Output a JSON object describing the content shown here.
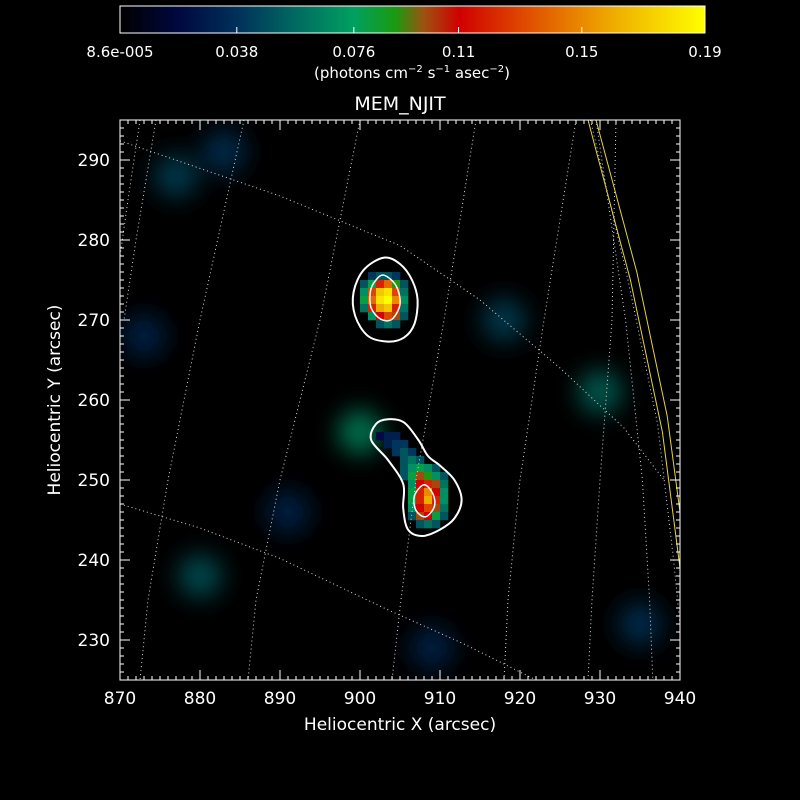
{
  "chart_data": {
    "type": "heatmap",
    "title": "MEM_NJIT",
    "xlabel": "Heliocentric X (arcsec)",
    "ylabel": "Heliocentric Y (arcsec)",
    "xlim": [
      870,
      940
    ],
    "ylim": [
      225,
      295
    ],
    "x_ticks": [
      870,
      880,
      890,
      900,
      910,
      920,
      930,
      940
    ],
    "y_ticks": [
      230,
      240,
      250,
      260,
      270,
      280,
      290
    ],
    "colorbar": {
      "min": 8.6e-05,
      "max": 0.19,
      "tick_values": [
        8.6e-05,
        0.038,
        0.076,
        0.11,
        0.15,
        0.19
      ],
      "tick_labels": [
        "8.6e-005",
        "0.038",
        "0.076",
        "0.11",
        "0.15",
        "0.19"
      ],
      "unit_text": "(photons cm",
      "unit_sup1": "−2",
      "unit_mid": " s",
      "unit_sup2": "−1",
      "unit_mid2": " asec",
      "unit_sup3": "−2",
      "unit_end": ")",
      "colormap_stops": [
        [
          0.0,
          "#000000"
        ],
        [
          0.1,
          "#000840"
        ],
        [
          0.2,
          "#00305a"
        ],
        [
          0.3,
          "#006a60"
        ],
        [
          0.4,
          "#00a060"
        ],
        [
          0.47,
          "#1a9a10"
        ],
        [
          0.52,
          "#a05010"
        ],
        [
          0.58,
          "#d00000"
        ],
        [
          0.7,
          "#e05000"
        ],
        [
          0.85,
          "#f0b000"
        ],
        [
          1.0,
          "#ffff00"
        ]
      ]
    },
    "pixel_size_arcsec": 1.0,
    "sources": [
      {
        "name": "upper",
        "pixels": [
          {
            "x": 901.5,
            "y": 275.5,
            "v": 0.04
          },
          {
            "x": 902.5,
            "y": 275.5,
            "v": 0.05
          },
          {
            "x": 903.5,
            "y": 275.5,
            "v": 0.05
          },
          {
            "x": 904.5,
            "y": 275.5,
            "v": 0.04
          },
          {
            "x": 900.5,
            "y": 274.5,
            "v": 0.05
          },
          {
            "x": 901.5,
            "y": 274.5,
            "v": 0.08
          },
          {
            "x": 902.5,
            "y": 274.5,
            "v": 0.12
          },
          {
            "x": 903.5,
            "y": 274.5,
            "v": 0.14
          },
          {
            "x": 904.5,
            "y": 274.5,
            "v": 0.09
          },
          {
            "x": 905.5,
            "y": 274.5,
            "v": 0.05
          },
          {
            "x": 900.5,
            "y": 273.5,
            "v": 0.07
          },
          {
            "x": 901.5,
            "y": 273.5,
            "v": 0.13
          },
          {
            "x": 902.5,
            "y": 273.5,
            "v": 0.17
          },
          {
            "x": 903.5,
            "y": 273.5,
            "v": 0.18
          },
          {
            "x": 904.5,
            "y": 273.5,
            "v": 0.13
          },
          {
            "x": 905.5,
            "y": 273.5,
            "v": 0.06
          },
          {
            "x": 900.5,
            "y": 272.5,
            "v": 0.08
          },
          {
            "x": 901.5,
            "y": 272.5,
            "v": 0.14
          },
          {
            "x": 902.5,
            "y": 272.5,
            "v": 0.18
          },
          {
            "x": 903.5,
            "y": 272.5,
            "v": 0.19
          },
          {
            "x": 904.5,
            "y": 272.5,
            "v": 0.15
          },
          {
            "x": 905.5,
            "y": 272.5,
            "v": 0.07
          },
          {
            "x": 900.5,
            "y": 271.5,
            "v": 0.06
          },
          {
            "x": 901.5,
            "y": 271.5,
            "v": 0.12
          },
          {
            "x": 902.5,
            "y": 271.5,
            "v": 0.16
          },
          {
            "x": 903.5,
            "y": 271.5,
            "v": 0.17
          },
          {
            "x": 904.5,
            "y": 271.5,
            "v": 0.12
          },
          {
            "x": 905.5,
            "y": 271.5,
            "v": 0.06
          },
          {
            "x": 901.5,
            "y": 270.5,
            "v": 0.07
          },
          {
            "x": 902.5,
            "y": 270.5,
            "v": 0.11
          },
          {
            "x": 903.5,
            "y": 270.5,
            "v": 0.13
          },
          {
            "x": 904.5,
            "y": 270.5,
            "v": 0.1
          },
          {
            "x": 905.5,
            "y": 270.5,
            "v": 0.05
          },
          {
            "x": 902.5,
            "y": 269.5,
            "v": 0.05
          },
          {
            "x": 903.5,
            "y": 269.5,
            "v": 0.06
          },
          {
            "x": 904.5,
            "y": 269.5,
            "v": 0.05
          }
        ]
      },
      {
        "name": "lower",
        "pixels": [
          {
            "x": 902.5,
            "y": 255.5,
            "v": 0.02
          },
          {
            "x": 903.5,
            "y": 255.5,
            "v": 0.03
          },
          {
            "x": 904.5,
            "y": 255.5,
            "v": 0.03
          },
          {
            "x": 903.5,
            "y": 254.5,
            "v": 0.03
          },
          {
            "x": 904.5,
            "y": 254.5,
            "v": 0.04
          },
          {
            "x": 905.5,
            "y": 254.5,
            "v": 0.04
          },
          {
            "x": 904.5,
            "y": 253.5,
            "v": 0.04
          },
          {
            "x": 905.5,
            "y": 253.5,
            "v": 0.05
          },
          {
            "x": 906.5,
            "y": 253.5,
            "v": 0.04
          },
          {
            "x": 905.5,
            "y": 252.5,
            "v": 0.05
          },
          {
            "x": 906.5,
            "y": 252.5,
            "v": 0.06
          },
          {
            "x": 907.5,
            "y": 252.5,
            "v": 0.05
          },
          {
            "x": 905.5,
            "y": 251.5,
            "v": 0.05
          },
          {
            "x": 906.5,
            "y": 251.5,
            "v": 0.07
          },
          {
            "x": 907.5,
            "y": 251.5,
            "v": 0.08
          },
          {
            "x": 908.5,
            "y": 251.5,
            "v": 0.07
          },
          {
            "x": 909.5,
            "y": 251.5,
            "v": 0.05
          },
          {
            "x": 905.5,
            "y": 250.5,
            "v": 0.05
          },
          {
            "x": 906.5,
            "y": 250.5,
            "v": 0.08
          },
          {
            "x": 907.5,
            "y": 250.5,
            "v": 0.1
          },
          {
            "x": 908.5,
            "y": 250.5,
            "v": 0.09
          },
          {
            "x": 909.5,
            "y": 250.5,
            "v": 0.07
          },
          {
            "x": 910.5,
            "y": 250.5,
            "v": 0.05
          },
          {
            "x": 906.5,
            "y": 249.5,
            "v": 0.07
          },
          {
            "x": 907.5,
            "y": 249.5,
            "v": 0.11
          },
          {
            "x": 908.5,
            "y": 249.5,
            "v": 0.12
          },
          {
            "x": 909.5,
            "y": 249.5,
            "v": 0.1
          },
          {
            "x": 910.5,
            "y": 249.5,
            "v": 0.06
          },
          {
            "x": 906.5,
            "y": 248.5,
            "v": 0.08
          },
          {
            "x": 907.5,
            "y": 248.5,
            "v": 0.12
          },
          {
            "x": 908.5,
            "y": 248.5,
            "v": 0.15
          },
          {
            "x": 909.5,
            "y": 248.5,
            "v": 0.11
          },
          {
            "x": 910.5,
            "y": 248.5,
            "v": 0.07
          },
          {
            "x": 906.5,
            "y": 247.5,
            "v": 0.08
          },
          {
            "x": 907.5,
            "y": 247.5,
            "v": 0.12
          },
          {
            "x": 908.5,
            "y": 247.5,
            "v": 0.16
          },
          {
            "x": 909.5,
            "y": 247.5,
            "v": 0.12
          },
          {
            "x": 910.5,
            "y": 247.5,
            "v": 0.07
          },
          {
            "x": 906.5,
            "y": 246.5,
            "v": 0.07
          },
          {
            "x": 907.5,
            "y": 246.5,
            "v": 0.11
          },
          {
            "x": 908.5,
            "y": 246.5,
            "v": 0.13
          },
          {
            "x": 909.5,
            "y": 246.5,
            "v": 0.1
          },
          {
            "x": 910.5,
            "y": 246.5,
            "v": 0.06
          },
          {
            "x": 906.5,
            "y": 245.5,
            "v": 0.05
          },
          {
            "x": 907.5,
            "y": 245.5,
            "v": 0.1
          },
          {
            "x": 908.5,
            "y": 245.5,
            "v": 0.11
          },
          {
            "x": 909.5,
            "y": 245.5,
            "v": 0.08
          },
          {
            "x": 910.5,
            "y": 245.5,
            "v": 0.05
          },
          {
            "x": 907.5,
            "y": 244.5,
            "v": 0.05
          },
          {
            "x": 908.5,
            "y": 244.5,
            "v": 0.06
          },
          {
            "x": 909.5,
            "y": 244.5,
            "v": 0.05
          }
        ]
      }
    ],
    "faint_background_blobs": [
      {
        "x": 877,
        "y": 288,
        "v": 0.006
      },
      {
        "x": 883,
        "y": 291,
        "v": 0.005
      },
      {
        "x": 873,
        "y": 268,
        "v": 0.004
      },
      {
        "x": 880,
        "y": 238,
        "v": 0.007
      },
      {
        "x": 891,
        "y": 246,
        "v": 0.004
      },
      {
        "x": 900,
        "y": 256,
        "v": 0.01
      },
      {
        "x": 918,
        "y": 270,
        "v": 0.006
      },
      {
        "x": 930,
        "y": 261,
        "v": 0.008
      },
      {
        "x": 935,
        "y": 232,
        "v": 0.005
      },
      {
        "x": 909,
        "y": 229,
        "v": 0.004
      }
    ],
    "contours": [
      {
        "level": "outer",
        "color": "#ffffff",
        "points": [
          [
            903.0,
            277.8
          ],
          [
            905.0,
            277.0
          ],
          [
            906.5,
            275.0
          ],
          [
            907.2,
            272.5
          ],
          [
            906.8,
            269.5
          ],
          [
            905.5,
            267.8
          ],
          [
            903.5,
            267.3
          ],
          [
            901.0,
            268.0
          ],
          [
            899.4,
            270.5
          ],
          [
            899.2,
            273.5
          ],
          [
            900.5,
            276.3
          ]
        ]
      },
      {
        "level": "inner",
        "color": "#ffffff",
        "points": [
          [
            903.0,
            275.6
          ],
          [
            904.5,
            274.3
          ],
          [
            905.0,
            272.0
          ],
          [
            904.0,
            270.1
          ],
          [
            902.6,
            270.1
          ],
          [
            901.4,
            271.5
          ],
          [
            901.3,
            273.6
          ],
          [
            902.0,
            275.0
          ]
        ]
      },
      {
        "level": "outer",
        "color": "#ffffff",
        "points": [
          [
            903.5,
            257.6
          ],
          [
            905.5,
            257.2
          ],
          [
            907.3,
            255.0
          ],
          [
            908.5,
            253.0
          ],
          [
            910.0,
            251.8
          ],
          [
            911.8,
            250.0
          ],
          [
            912.7,
            247.5
          ],
          [
            911.8,
            245.2
          ],
          [
            910.0,
            243.8
          ],
          [
            907.8,
            243.0
          ],
          [
            906.0,
            243.8
          ],
          [
            905.4,
            246.5
          ],
          [
            905.4,
            249.5
          ],
          [
            903.5,
            252.5
          ],
          [
            901.4,
            255.0
          ],
          [
            902.0,
            257.0
          ]
        ]
      },
      {
        "level": "inner",
        "color": "#ffffff",
        "points": [
          [
            908.0,
            249.4
          ],
          [
            909.1,
            248.3
          ],
          [
            909.3,
            246.7
          ],
          [
            908.2,
            245.4
          ],
          [
            907.0,
            246.2
          ],
          [
            906.8,
            248.0
          ]
        ]
      }
    ],
    "grid_lines": {
      "color": "#d8d8d8",
      "lines": [
        [
          [
            870,
            292.4
          ],
          [
            890,
            285.5
          ],
          [
            905,
            279.3
          ],
          [
            915,
            272.5
          ],
          [
            925,
            264.0
          ],
          [
            933,
            256.5
          ],
          [
            938,
            250.0
          ]
        ],
        [
          [
            870,
            247.0
          ],
          [
            880,
            244.0
          ],
          [
            890,
            240.2
          ],
          [
            903,
            234.0
          ],
          [
            913,
            229.5
          ],
          [
            920,
            226.0
          ],
          [
            925,
            223.5
          ]
        ],
        [
          [
            874.5,
            295
          ],
          [
            872,
            280
          ],
          [
            870.5,
            270
          ]
        ],
        [
          [
            872.5,
            295
          ],
          [
            871,
            285
          ],
          [
            870,
            278
          ]
        ],
        [
          [
            885.5,
            295
          ],
          [
            880,
            270
          ],
          [
            876,
            250
          ],
          [
            873.5,
            235
          ],
          [
            872.5,
            225
          ]
        ],
        [
          [
            900,
            295
          ],
          [
            895,
            270
          ],
          [
            890,
            250
          ],
          [
            887,
            235
          ],
          [
            886,
            225
          ]
        ],
        [
          [
            914.5,
            295
          ],
          [
            910.5,
            270
          ],
          [
            907,
            250
          ],
          [
            905,
            234
          ],
          [
            904,
            225
          ]
        ],
        [
          [
            927,
            295
          ],
          [
            923,
            270
          ],
          [
            920,
            250
          ],
          [
            918.5,
            235
          ],
          [
            918,
            225
          ]
        ],
        [
          [
            932,
            295
          ],
          [
            931.5,
            270
          ],
          [
            930,
            250
          ],
          [
            929,
            235
          ],
          [
            928.5,
            225
          ]
        ],
        [
          [
            929.5,
            295
          ],
          [
            933.2,
            270
          ],
          [
            935.3,
            250
          ],
          [
            936.2,
            235
          ],
          [
            936.6,
            225
          ]
        ],
        [
          [
            928.8,
            295
          ],
          [
            933.5,
            275
          ],
          [
            937.2,
            257
          ],
          [
            939.2,
            240
          ],
          [
            940,
            232
          ]
        ]
      ]
    },
    "limb_lines": {
      "color": "#e0d05a",
      "lines": [
        [
          [
            928.5,
            295
          ],
          [
            933.8,
            275
          ],
          [
            937.8,
            256
          ],
          [
            940,
            239
          ]
        ],
        [
          [
            929.5,
            295
          ],
          [
            934.6,
            276
          ],
          [
            938.4,
            258
          ],
          [
            940,
            246
          ]
        ]
      ]
    }
  }
}
